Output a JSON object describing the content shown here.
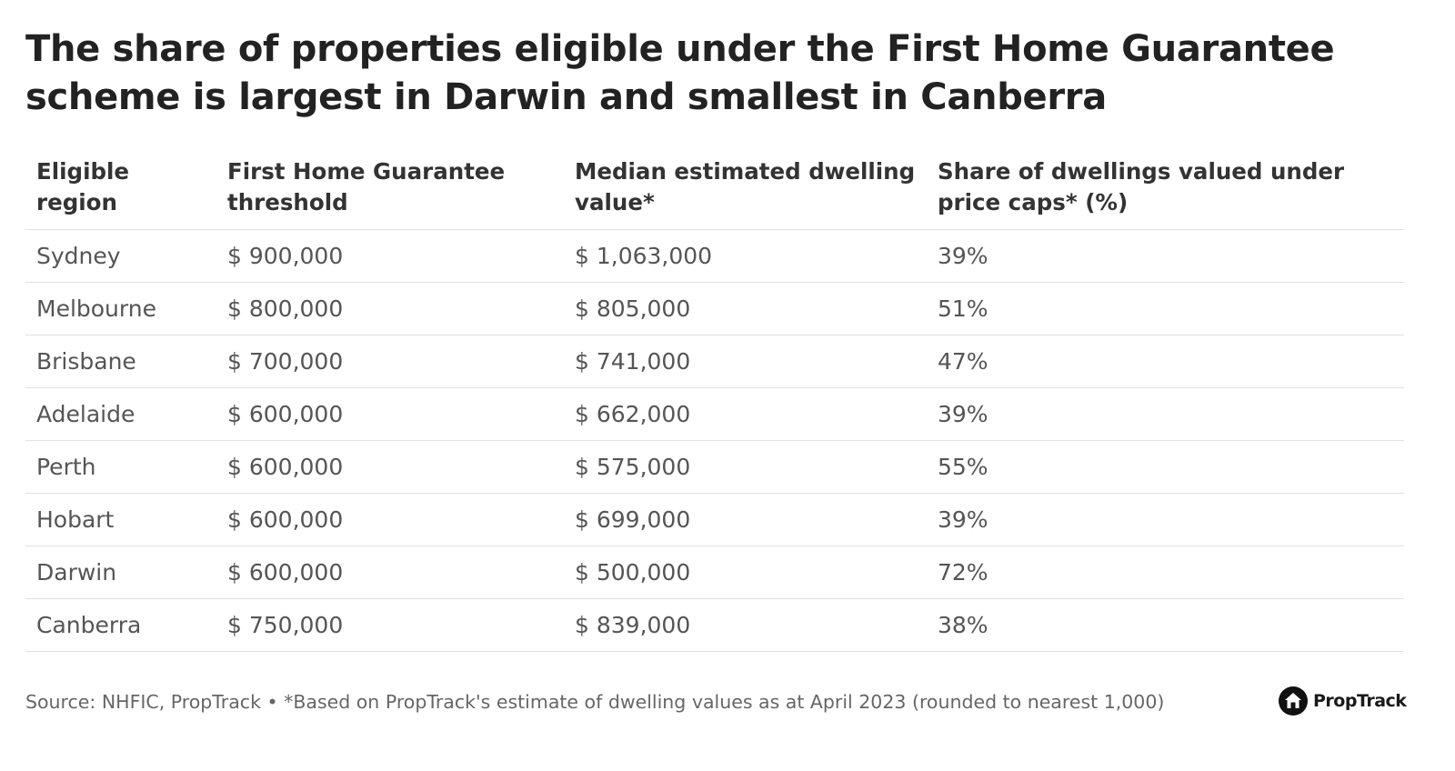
{
  "title": "The share of properties eligible under the First Home Guarantee scheme is largest in Darwin and smallest in Canberra",
  "chart_data": {
    "type": "table",
    "columns": [
      "Eligible region",
      "First Home Guarantee threshold",
      "Median estimated dwelling value*",
      "Share of dwellings valued under price caps* (%)"
    ],
    "rows": [
      [
        "Sydney",
        "$ 900,000",
        "$ 1,063,000",
        "39%"
      ],
      [
        "Melbourne",
        "$ 800,000",
        "$ 805,000",
        "51%"
      ],
      [
        "Brisbane",
        "$ 700,000",
        "$ 741,000",
        "47%"
      ],
      [
        "Adelaide",
        "$ 600,000",
        "$ 662,000",
        "39%"
      ],
      [
        "Perth",
        "$ 600,000",
        "$ 575,000",
        "55%"
      ],
      [
        "Hobart",
        "$ 600,000",
        "$ 699,000",
        "39%"
      ],
      [
        "Darwin",
        "$ 600,000",
        "$ 500,000",
        "72%"
      ],
      [
        "Canberra",
        "$ 750,000",
        "$ 839,000",
        "38%"
      ]
    ]
  },
  "footer": {
    "source": "Source: NHFIC, PropTrack • *Based on PropTrack's estimate of dwelling values as at April 2023 (rounded to nearest 1,000)"
  },
  "logo": {
    "name": "PropTrack",
    "icon": "house-icon"
  },
  "colors": {
    "title": "#222222",
    "header_text": "#333333",
    "cell_text": "#555555",
    "rule": "#e1e1e1",
    "footer_text": "#666666"
  }
}
